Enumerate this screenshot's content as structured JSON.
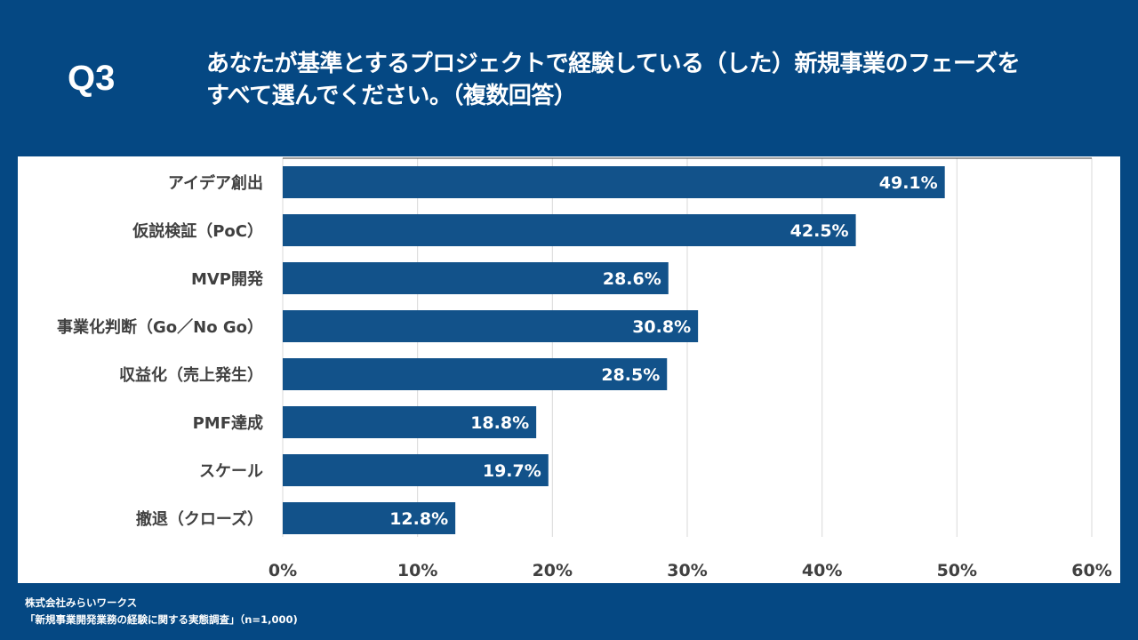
{
  "header": {
    "question_number": "Q3",
    "title_line1": "あなたが基準とするプロジェクトで経験している（した）新規事業のフェーズを",
    "title_line2": "すべて選んでください。（複数回答）"
  },
  "colors": {
    "background": "#054883",
    "bar": "#12528A",
    "bar_label": "#FFFFFF",
    "axis_text": "#404040",
    "gridline": "#D9D9D9"
  },
  "chart_data": {
    "type": "bar",
    "orientation": "horizontal",
    "title": "",
    "xlabel": "",
    "ylabel": "",
    "categories": [
      "アイデア創出",
      "仮説検証（PoC）",
      "MVP開発",
      "事業化判断（Go／No Go）",
      "収益化（売上発生）",
      "PMF達成",
      "スケール",
      "撤退（クローズ）"
    ],
    "values": [
      49.1,
      42.5,
      28.6,
      30.8,
      28.5,
      18.8,
      19.7,
      12.8
    ],
    "value_labels": [
      "49.1%",
      "42.5%",
      "28.6%",
      "30.8%",
      "28.5%",
      "18.8%",
      "19.7%",
      "12.8%"
    ],
    "xlim": [
      0,
      60
    ],
    "x_ticks": [
      0,
      10,
      20,
      30,
      40,
      50,
      60
    ],
    "x_tick_labels": [
      "0%",
      "10%",
      "20%",
      "30%",
      "40%",
      "50%",
      "60%"
    ],
    "grid": true,
    "legend": "none"
  },
  "footer": {
    "company": "株式会社みらいワークス",
    "source": "「新規事業開発業務の経験に関する実態調査」（n=1,000)"
  }
}
